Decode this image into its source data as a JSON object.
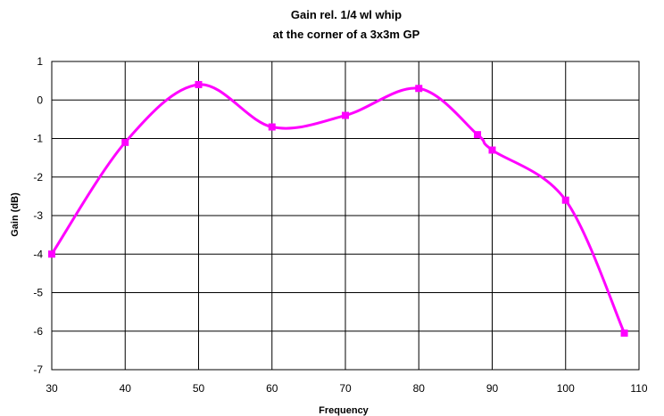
{
  "chart_data": {
    "type": "line",
    "title_line1": "Gain rel. 1/4 wl whip",
    "title_line2": "at the corner of a 3x3m GP",
    "xlabel": "Frequency",
    "ylabel": "Gain (dB)",
    "xlim": [
      30,
      110
    ],
    "ylim": [
      -7,
      1
    ],
    "xticks": [
      30,
      40,
      50,
      60,
      70,
      80,
      90,
      100,
      110
    ],
    "yticks": [
      1,
      0,
      -1,
      -2,
      -3,
      -4,
      -5,
      -6,
      -7
    ],
    "grid": true,
    "smooth": true,
    "series": [
      {
        "color": "#ff00ff",
        "marker": "square",
        "x": [
          30,
          40,
          50,
          60,
          70,
          80,
          88,
          90,
          100,
          108
        ],
        "y": [
          -4.0,
          -1.1,
          0.4,
          -0.7,
          -0.4,
          0.3,
          -0.9,
          -1.3,
          -2.6,
          -6.05
        ]
      }
    ]
  }
}
